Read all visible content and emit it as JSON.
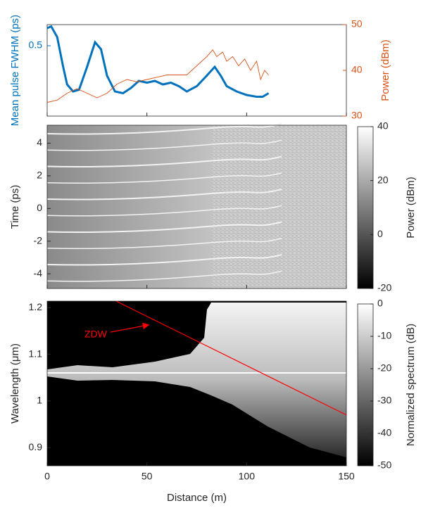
{
  "chart_data": [
    {
      "type": "line",
      "xlim": [
        0,
        150
      ],
      "ylabel": "Mean pulse FWHM (ps)",
      "y2label": "Power (dBm)",
      "ylim": [
        0.1,
        0.62
      ],
      "yticks": [
        0.5
      ],
      "y2lim": [
        30,
        50
      ],
      "y2ticks": [
        30,
        40,
        50
      ],
      "series": [
        {
          "name": "Mean pulse FWHM",
          "color": "#0072bd",
          "axis": "y",
          "x": [
            0,
            2,
            5,
            8,
            10,
            13,
            16,
            20,
            24,
            27,
            30,
            34,
            38,
            42,
            46,
            50,
            54,
            58,
            62,
            66,
            70,
            75,
            80,
            84,
            87,
            90,
            95,
            100,
            105,
            108,
            111
          ],
          "values": [
            0.6,
            0.61,
            0.55,
            0.38,
            0.28,
            0.24,
            0.25,
            0.38,
            0.52,
            0.48,
            0.33,
            0.24,
            0.23,
            0.26,
            0.3,
            0.29,
            0.3,
            0.28,
            0.29,
            0.27,
            0.24,
            0.27,
            0.33,
            0.38,
            0.33,
            0.27,
            0.24,
            0.22,
            0.21,
            0.21,
            0.23
          ]
        },
        {
          "name": "Power",
          "color": "#d95319",
          "axis": "y2",
          "x": [
            0,
            5,
            10,
            15,
            20,
            25,
            30,
            35,
            40,
            45,
            50,
            55,
            60,
            65,
            70,
            75,
            80,
            83,
            85,
            88,
            90,
            93,
            96,
            99,
            102,
            105,
            107,
            109,
            111
          ],
          "values": [
            33,
            33.5,
            35,
            36,
            35,
            34,
            35,
            37,
            38,
            37.5,
            38,
            38.5,
            39,
            39,
            39,
            41,
            43,
            44.5,
            43,
            44,
            42,
            43,
            41,
            42.5,
            40,
            42,
            38,
            40,
            39
          ]
        }
      ]
    },
    {
      "type": "heatmap",
      "xlim": [
        0,
        150
      ],
      "ylabel": "Time (ps)",
      "ylim": [
        -4.9,
        5.1
      ],
      "yticks": [
        -4,
        -2,
        0,
        2,
        4
      ],
      "colorbar": {
        "label": "Power (dBm)",
        "lim": [
          -20,
          40
        ],
        "ticks": [
          -20,
          0,
          20,
          40
        ]
      }
    },
    {
      "type": "heatmap",
      "xlabel": "Distance (m)",
      "xlim": [
        0,
        150
      ],
      "xticks": [
        0,
        50,
        100,
        150
      ],
      "ylabel": "Wavelength (μm)",
      "ylim": [
        0.861,
        1.214
      ],
      "yticks": [
        0.9,
        1,
        1.1,
        1.2
      ],
      "colorbar": {
        "label": "Normalized spectrum (dB)",
        "lim": [
          -50,
          0
        ],
        "ticks": [
          -50,
          -40,
          -30,
          -20,
          -10,
          0
        ]
      },
      "zdw": {
        "label": "ZDW",
        "color": "#ff0000",
        "x": [
          34.6,
          150
        ],
        "y": [
          1.214,
          0.97
        ]
      }
    }
  ]
}
